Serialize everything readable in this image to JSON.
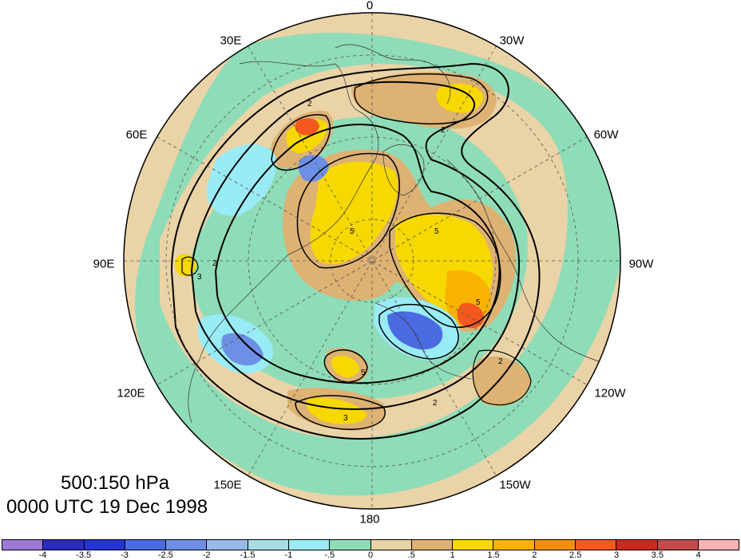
{
  "map": {
    "projection": "north polar stereographic",
    "longitude_labels": [
      "0",
      "30W",
      "60W",
      "90W",
      "120W",
      "150W",
      "180",
      "150E",
      "120E",
      "90E",
      "60E",
      "30E"
    ]
  },
  "title": {
    "line1": "500:150 hPa",
    "line2": "0000 UTC 19 Dec 1998"
  },
  "colorbar": {
    "labels": [
      "-4",
      "-3.5",
      "-3",
      "-2.5",
      "-2",
      "-1.5",
      "-1",
      "-.5",
      "0",
      ".5",
      "1",
      "1.5",
      "2",
      "2.5",
      "3",
      "3.5",
      "4"
    ],
    "colors": [
      "#9e78d6",
      "#2b2bbd",
      "#2434d4",
      "#4b6be2",
      "#6e8fe6",
      "#98b9ea",
      "#a9dde4",
      "#99ecf6",
      "#8fdcb8",
      "#ead3a6",
      "#ddb273",
      "#f7d800",
      "#f9b200",
      "#f48e0f",
      "#f4581f",
      "#c9281e",
      "#c34b4b",
      "#f7b2b2"
    ]
  },
  "contour_labels": [
    "2",
    "2",
    "2",
    "2",
    "2",
    "3",
    "3",
    "5",
    "5",
    "5",
    "5"
  ]
}
